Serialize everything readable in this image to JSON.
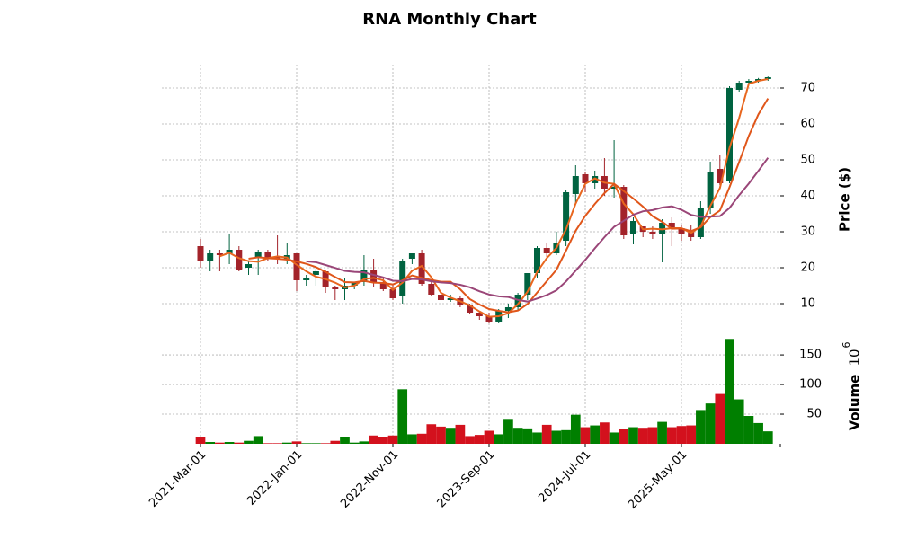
{
  "chart_data": {
    "type": "candlestick",
    "title": "RNA Monthly Chart",
    "ylabel": "Price ($)",
    "y2label": "Volume",
    "y2unit": {
      "base": "10",
      "exponent": "6"
    },
    "categories": [
      "2021-Mar-01",
      "2021-Apr-01",
      "2021-May-01",
      "2021-Jun-01",
      "2021-Jul-01",
      "2021-Aug-01",
      "2021-Sep-01",
      "2021-Oct-01",
      "2021-Nov-01",
      "2021-Dec-01",
      "2022-Jan-01",
      "2022-Feb-01",
      "2022-Mar-01",
      "2022-Apr-01",
      "2022-May-01",
      "2022-Jun-01",
      "2022-Jul-01",
      "2022-Aug-01",
      "2022-Sep-01",
      "2022-Oct-01",
      "2022-Nov-01",
      "2022-Dec-01",
      "2023-Jan-01",
      "2023-Feb-01",
      "2023-Mar-01",
      "2023-Apr-01",
      "2023-May-01",
      "2023-Jun-01",
      "2023-Jul-01",
      "2023-Aug-01",
      "2023-Sep-01",
      "2023-Oct-01",
      "2023-Nov-01",
      "2023-Dec-01",
      "2024-Jan-01",
      "2024-Feb-01",
      "2024-Mar-01",
      "2024-Apr-01",
      "2024-May-01",
      "2024-Jun-01",
      "2024-Jul-01",
      "2024-Aug-01",
      "2024-Sep-01",
      "2024-Oct-01",
      "2024-Nov-01",
      "2024-Dec-01",
      "2025-Jan-01",
      "2025-Feb-01",
      "2025-Mar-01",
      "2025-Apr-01",
      "2025-May-01",
      "2025-Jun-01",
      "2025-Jul-01",
      "2025-Aug-01",
      "2025-Sep-01",
      "2025-Oct-01",
      "2025-Nov-01",
      "2025-Dec-01",
      "2026-Jan-01",
      "2026-Feb-01"
    ],
    "open": [
      26,
      22,
      24,
      24,
      25,
      20,
      23,
      24.5,
      23,
      22.5,
      24,
      16.5,
      18,
      19,
      14.5,
      14,
      15,
      16,
      19.5,
      16,
      14,
      12,
      22.5,
      24,
      15.5,
      12.5,
      11,
      11.5,
      9.5,
      7.5,
      6.5,
      5,
      8,
      9,
      12.5,
      18.5,
      25.5,
      24,
      27.5,
      40.5,
      46,
      43.5,
      45.5,
      42,
      42.5,
      29.5,
      31.5,
      30,
      29.5,
      32.5,
      31,
      30,
      28.5,
      36.5,
      47.5,
      44,
      69.5,
      71.5,
      72,
      72.5
    ],
    "high": [
      28,
      25,
      25,
      29.5,
      26,
      22,
      25,
      25,
      29,
      27,
      24,
      18,
      20,
      19.5,
      15,
      17,
      16,
      23.5,
      22.5,
      17,
      15.5,
      22.5,
      24,
      25,
      16,
      13,
      12.5,
      12,
      10,
      8,
      7.5,
      8.5,
      10,
      13,
      18.5,
      26,
      27,
      30,
      41.5,
      48.5,
      46.5,
      47,
      50.5,
      55.5,
      43,
      34,
      31.5,
      31.5,
      33.5,
      34,
      32,
      32,
      38.5,
      49.5,
      51.5,
      70.5,
      72,
      72.5,
      72.8,
      73.2
    ],
    "low": [
      20,
      19,
      19,
      21,
      19,
      18,
      18,
      22,
      21,
      21,
      13.5,
      15,
      15,
      13,
      11,
      11,
      14,
      15,
      14.5,
      13.5,
      11,
      10,
      21,
      15,
      12,
      10.5,
      10.5,
      9,
      7,
      5.5,
      4.5,
      4.5,
      6,
      8,
      11,
      17,
      23,
      23.5,
      26,
      38,
      41,
      42,
      40,
      39.5,
      28,
      26.5,
      28.5,
      28,
      21.5,
      26,
      27.5,
      27.5,
      28,
      35,
      43,
      43.5,
      69,
      71,
      71.5,
      72
    ],
    "close": [
      22,
      24,
      23.5,
      25,
      19.5,
      21,
      24.5,
      22.5,
      22.5,
      23.5,
      16.5,
      17,
      19,
      14.5,
      14,
      15,
      16,
      19.5,
      16,
      14,
      11.5,
      22,
      24,
      15.5,
      12.5,
      11,
      11.5,
      9.5,
      7.5,
      6.5,
      5,
      8,
      9,
      12.5,
      18.5,
      25.5,
      24,
      27,
      41,
      45.5,
      43.5,
      45.5,
      42,
      42.5,
      29,
      33,
      30,
      29.5,
      32.5,
      31,
      29.5,
      28.5,
      36.5,
      46.5,
      43.5,
      70,
      71.5,
      72,
      72.5,
      73
    ],
    "volume": [
      12,
      3,
      2,
      3,
      2,
      5,
      13,
      1,
      1,
      2,
      4,
      1,
      1,
      1,
      5,
      12,
      2,
      4,
      14,
      11,
      14,
      92,
      16,
      17,
      33,
      29,
      27,
      32,
      13,
      15,
      22,
      16,
      42,
      27,
      26,
      19,
      32,
      22,
      23,
      49,
      28,
      31,
      36,
      19,
      25,
      28,
      27,
      28,
      37,
      28,
      30,
      31,
      57,
      68,
      84,
      177,
      75,
      47,
      35,
      21
    ],
    "up_color": "#006340",
    "down_color": "#a3232a",
    "volume_up_color": "#007f00",
    "volume_down_color": "#d3111d",
    "mav": [
      {
        "period": 3,
        "color": "#e8661e"
      },
      {
        "period": 6,
        "color": "#e0561a"
      },
      {
        "period": 12,
        "color": "#9a4678"
      }
    ],
    "ylim": [
      2,
      76.5
    ],
    "yticks": [
      10,
      20,
      30,
      40,
      50,
      60,
      70
    ],
    "y2lim": [
      0,
      185
    ],
    "y2ticks": [
      50,
      100,
      150
    ],
    "xticks": [
      {
        "value": 0,
        "label": "2021-Mar-01"
      },
      {
        "value": 10,
        "label": "2022-Jan-01"
      },
      {
        "value": 20,
        "label": "2022-Nov-01"
      },
      {
        "value": 30,
        "label": "2023-Sep-01"
      },
      {
        "value": 40,
        "label": "2024-Jul-01"
      },
      {
        "value": 50,
        "label": "2025-May-01"
      }
    ],
    "grid": true
  }
}
